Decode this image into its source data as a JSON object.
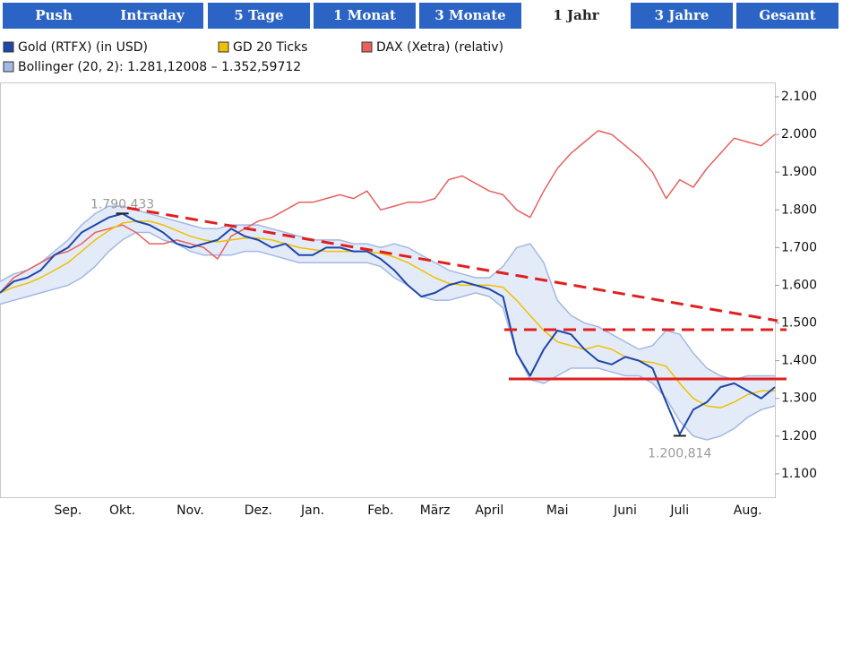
{
  "tabs": [
    {
      "label": "Push"
    },
    {
      "label": "Intraday"
    },
    {
      "label": "5 Tage"
    },
    {
      "label": "1 Monat"
    },
    {
      "label": "3 Monate"
    },
    {
      "label": "1 Jahr",
      "active": true
    },
    {
      "label": "3 Jahre"
    },
    {
      "label": "Gesamt"
    }
  ],
  "chart_data": {
    "type": "line",
    "categories": [
      null,
      null,
      null,
      null,
      null,
      "Sep.",
      null,
      null,
      null,
      "Okt.",
      null,
      null,
      null,
      null,
      "Nov.",
      null,
      null,
      null,
      null,
      "Dez.",
      null,
      null,
      null,
      "Jan.",
      null,
      null,
      null,
      null,
      "Feb.",
      null,
      null,
      null,
      "März",
      null,
      null,
      null,
      "April",
      null,
      null,
      null,
      null,
      "Mai",
      null,
      null,
      null,
      null,
      "Juni",
      null,
      null,
      null,
      "Juli",
      null,
      null,
      null,
      null,
      "Aug.",
      null,
      null
    ],
    "series": [
      {
        "name": "Gold (RTFX) (in USD)",
        "color": "#1f47a8",
        "values": [
          1580,
          1610,
          1620,
          1640,
          1680,
          1700,
          1740,
          1760,
          1780,
          1790,
          1770,
          1760,
          1740,
          1710,
          1700,
          1710,
          1720,
          1750,
          1730,
          1720,
          1700,
          1710,
          1680,
          1680,
          1700,
          1700,
          1690,
          1690,
          1670,
          1640,
          1600,
          1570,
          1580,
          1600,
          1610,
          1600,
          1590,
          1570,
          1420,
          1360,
          1430,
          1480,
          1470,
          1430,
          1400,
          1390,
          1410,
          1400,
          1380,
          1290,
          1205,
          1270,
          1290,
          1330,
          1340,
          1320,
          1300,
          1330
        ]
      },
      {
        "name": "GD 20 Ticks",
        "color": "#f0c000",
        "values": [
          1580,
          1595,
          1605,
          1620,
          1640,
          1660,
          1690,
          1720,
          1745,
          1765,
          1770,
          1770,
          1760,
          1745,
          1730,
          1720,
          1715,
          1720,
          1725,
          1725,
          1720,
          1710,
          1700,
          1695,
          1690,
          1690,
          1690,
          1690,
          1685,
          1675,
          1660,
          1640,
          1620,
          1605,
          1600,
          1600,
          1600,
          1595,
          1560,
          1520,
          1480,
          1450,
          1440,
          1430,
          1440,
          1430,
          1410,
          1400,
          1395,
          1385,
          1340,
          1300,
          1280,
          1275,
          1290,
          1310,
          1320,
          1320
        ]
      },
      {
        "name": "DAX (Xetra) (relativ)",
        "color": "#e86060",
        "values": [
          1580,
          1620,
          1640,
          1660,
          1680,
          1690,
          1710,
          1740,
          1750,
          1760,
          1740,
          1710,
          1710,
          1720,
          1710,
          1700,
          1670,
          1730,
          1750,
          1770,
          1780,
          1800,
          1820,
          1820,
          1830,
          1840,
          1830,
          1850,
          1800,
          1810,
          1820,
          1820,
          1830,
          1880,
          1890,
          1870,
          1850,
          1840,
          1800,
          1780,
          1850,
          1910,
          1950,
          1980,
          2010,
          2000,
          1970,
          1940,
          1900,
          1830,
          1880,
          1860,
          1910,
          1950,
          1990,
          1980,
          1970,
          2000
        ]
      },
      {
        "name": "Bollinger (20, 2): 1.281,12008 – 1.352,59712",
        "type": "band",
        "color": "#a3b8e3",
        "upper": [
          1610,
          1630,
          1640,
          1660,
          1690,
          1720,
          1760,
          1790,
          1810,
          1810,
          1800,
          1790,
          1780,
          1770,
          1760,
          1750,
          1750,
          1760,
          1760,
          1760,
          1750,
          1740,
          1730,
          1720,
          1720,
          1720,
          1710,
          1710,
          1700,
          1710,
          1700,
          1680,
          1660,
          1640,
          1630,
          1620,
          1620,
          1650,
          1700,
          1710,
          1660,
          1560,
          1520,
          1500,
          1490,
          1470,
          1450,
          1430,
          1440,
          1480,
          1470,
          1420,
          1380,
          1360,
          1350,
          1360,
          1360,
          1360
        ],
        "lower": [
          1550,
          1560,
          1570,
          1580,
          1590,
          1600,
          1620,
          1650,
          1690,
          1720,
          1740,
          1740,
          1720,
          1710,
          1690,
          1680,
          1680,
          1680,
          1690,
          1690,
          1680,
          1670,
          1660,
          1660,
          1660,
          1660,
          1660,
          1660,
          1650,
          1620,
          1600,
          1570,
          1560,
          1560,
          1570,
          1580,
          1570,
          1540,
          1420,
          1350,
          1340,
          1360,
          1380,
          1380,
          1380,
          1370,
          1360,
          1360,
          1340,
          1300,
          1240,
          1200,
          1190,
          1200,
          1220,
          1250,
          1270,
          1280
        ]
      }
    ],
    "ylim": [
      1038,
      2138
    ],
    "yticks": [
      {
        "value": 1100,
        "label": "1.100"
      },
      {
        "value": 1200,
        "label": "1.200"
      },
      {
        "value": 1300,
        "label": "1.300"
      },
      {
        "value": 1400,
        "label": "1.400"
      },
      {
        "value": 1500,
        "label": "1.500"
      },
      {
        "value": 1600,
        "label": "1.600"
      },
      {
        "value": 1700,
        "label": "1.700"
      },
      {
        "value": 1800,
        "label": "1.800"
      },
      {
        "value": 1900,
        "label": "1.900"
      },
      {
        "value": 2000,
        "label": "2.000"
      },
      {
        "value": 2100,
        "label": "2.100"
      }
    ],
    "annotations": [
      {
        "value": 1790.433,
        "label": "1.790,433",
        "position": "above"
      },
      {
        "value": 1200.814,
        "label": "1.200,814",
        "position": "below"
      }
    ]
  }
}
